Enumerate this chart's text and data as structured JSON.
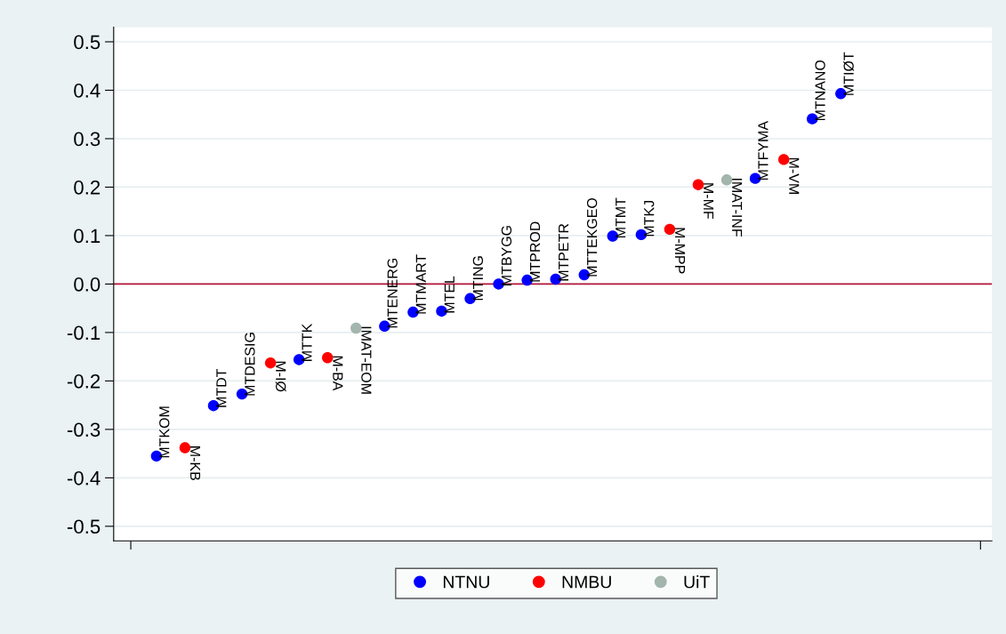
{
  "chart_data": {
    "type": "scatter",
    "categories": [
      "MTKOM",
      "M-KB",
      "MTDT",
      "MTDESIG",
      "M-IØ",
      "MTTK",
      "M-BA",
      "IMAT-EOM",
      "MTENERG",
      "MTMART",
      "MTEL",
      "MTING",
      "MTBYGG",
      "MTPROD",
      "MTPETR",
      "MTTEKGEO",
      "MTMT",
      "MTKJ",
      "M-MPP",
      "M-MF",
      "IMAT-INF",
      "MTFYMA",
      "M-VM",
      "MTNANO",
      "MTIØT"
    ],
    "series": [
      {
        "name": "NTNU",
        "color": "#0000ff",
        "values": [
          -0.355,
          null,
          -0.251,
          -0.227,
          null,
          -0.156,
          null,
          null,
          -0.087,
          -0.058,
          -0.056,
          -0.03,
          0.0,
          0.008,
          0.01,
          0.019,
          0.099,
          0.102,
          null,
          null,
          null,
          0.218,
          null,
          0.341,
          0.393
        ]
      },
      {
        "name": "NMBU",
        "color": "#ff0000",
        "values": [
          null,
          -0.338,
          null,
          null,
          -0.163,
          null,
          -0.152,
          null,
          null,
          null,
          null,
          null,
          null,
          null,
          null,
          null,
          null,
          null,
          0.113,
          0.205,
          null,
          null,
          0.257,
          null,
          null
        ]
      },
      {
        "name": "UiT",
        "color": "#a3b5ad",
        "values": [
          null,
          null,
          null,
          null,
          null,
          null,
          null,
          -0.091,
          null,
          null,
          null,
          null,
          null,
          null,
          null,
          null,
          null,
          null,
          null,
          null,
          0.215,
          null,
          null,
          null,
          null
        ]
      }
    ],
    "ylim": [
      -0.53,
      0.53
    ],
    "yticks": [
      -0.5,
      -0.4,
      -0.3,
      -0.2,
      -0.1,
      {
        "value": 0,
        "label": "0.0"
      },
      0.1,
      0.2,
      0.3,
      0.4,
      0.5
    ],
    "ref_lines": [
      {
        "axis": "y",
        "value": 0,
        "color": "#b5163a"
      }
    ],
    "grid": "y",
    "legend": "bottom",
    "marker": "circle",
    "tick_labels": "y"
  }
}
